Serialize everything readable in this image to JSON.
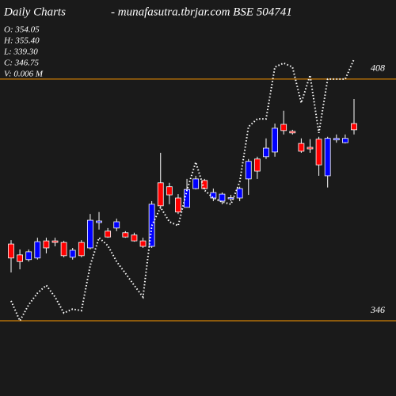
{
  "chart_data": {
    "type": "candlestick",
    "title": "Daily Charts",
    "subtitle": "-  munafasutra.tbrjar.com  BSE 504741",
    "info": [
      "O: 354.05",
      "H: 355.40",
      "L: 339.30",
      "C: 346.75",
      "V: 0.006  M"
    ],
    "open": [
      365.7,
      362.9,
      361.7,
      362.1,
      366.5,
      366.5,
      366.1,
      362.3,
      366.1,
      364.7,
      371.2,
      369.0,
      369.8,
      368.6,
      368.0,
      366.5,
      365.1,
      381.4,
      380.4,
      377.5,
      375.1,
      379.9,
      382.0,
      377.5,
      376.7,
      377.5,
      377.5,
      382.4,
      387.5,
      388.1,
      389.3,
      396.4,
      394.6,
      391.5,
      390.5,
      392.6,
      383.2,
      392.4,
      391.7,
      396.6
    ],
    "high": [
      366.7,
      364.3,
      364.3,
      367.3,
      367.3,
      367.3,
      366.5,
      364.7,
      366.7,
      373.4,
      373.9,
      369.8,
      372.2,
      369.0,
      368.6,
      367.3,
      376.7,
      389.1,
      381.4,
      378.5,
      382.4,
      383.2,
      382.4,
      379.9,
      378.9,
      378.3,
      380.4,
      387.5,
      388.1,
      392.8,
      396.6,
      399.9,
      395.0,
      392.8,
      392.6,
      393.2,
      393.2,
      393.8,
      393.8,
      402.9
    ],
    "low": [
      358.4,
      359.2,
      361.2,
      361.7,
      363.3,
      365.1,
      362.3,
      361.7,
      362.3,
      364.3,
      369.4,
      367.3,
      369.0,
      367.3,
      366.3,
      364.7,
      364.7,
      375.1,
      375.9,
      373.4,
      375.1,
      379.7,
      379.7,
      376.7,
      375.9,
      376.7,
      376.7,
      378.3,
      382.4,
      387.5,
      388.1,
      393.8,
      393.8,
      389.1,
      389.1,
      383.2,
      380.2,
      391.7,
      391.5,
      393.8
    ],
    "close": [
      362.1,
      361.2,
      363.7,
      366.3,
      364.7,
      366.1,
      362.7,
      364.1,
      362.7,
      371.8,
      371.6,
      367.5,
      371.4,
      367.5,
      366.5,
      365.1,
      375.9,
      375.5,
      378.3,
      373.9,
      379.7,
      382.4,
      379.9,
      378.9,
      378.5,
      377.6,
      379.9,
      386.9,
      384.4,
      390.3,
      395.4,
      394.8,
      394.2,
      389.5,
      390.1,
      386.0,
      392.8,
      392.8,
      392.8,
      395.0
    ],
    "line": {
      "color": "#ffffff",
      "values": [
        351.1,
        346.0,
        350.1,
        353.1,
        355.1,
        352.1,
        348.0,
        349.0,
        348.6,
        360.2,
        367.3,
        365.3,
        361.2,
        358.2,
        355.1,
        352.1,
        370.4,
        375.1,
        371.4,
        370.4,
        379.5,
        386.7,
        379.5,
        377.5,
        376.5,
        375.9,
        381.6,
        395.8,
        397.8,
        397.8,
        411.1,
        412.1,
        411.1,
        401.9,
        409.0,
        394.2,
        408,
        408,
        408,
        413.1
      ]
    },
    "up_color": "#0000ff",
    "down_color": "#ff0000",
    "ylim": [
      326.7,
      428.3
    ],
    "yticks": [
      408,
      346
    ],
    "grid_color": "#ff9900"
  }
}
